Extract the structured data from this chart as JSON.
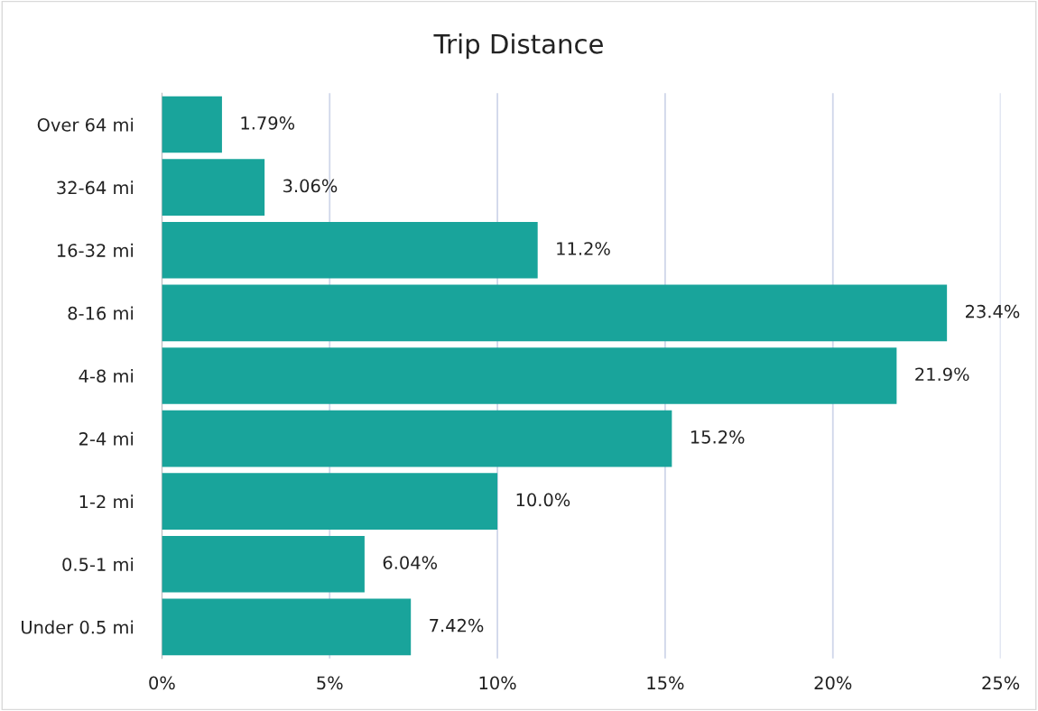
{
  "chart_data": {
    "type": "bar",
    "orientation": "horizontal",
    "title": "Trip Distance",
    "categories": [
      "Over 64 mi",
      "32-64 mi",
      "16-32 mi",
      "8-16 mi",
      "4-8 mi",
      "2-4 mi",
      "1-2 mi",
      "0.5-1 mi",
      "Under 0.5 mi"
    ],
    "values": [
      1.79,
      3.06,
      11.2,
      23.4,
      21.9,
      15.2,
      10.0,
      6.04,
      7.42
    ],
    "value_labels": [
      "1.79%",
      "3.06%",
      "11.2%",
      "23.4%",
      "21.9%",
      "15.2%",
      "10.0%",
      "6.04%",
      "7.42%"
    ],
    "color": "#19a49b",
    "xlim": [
      0,
      25
    ],
    "xticks": [
      {
        "value": 0,
        "label": "0%"
      },
      {
        "value": 5,
        "label": "5%"
      },
      {
        "value": 10,
        "label": "10%"
      },
      {
        "value": 15,
        "label": "15%"
      },
      {
        "value": 20,
        "label": "20%"
      },
      {
        "value": 25,
        "label": "25%"
      }
    ],
    "grid": "x"
  }
}
